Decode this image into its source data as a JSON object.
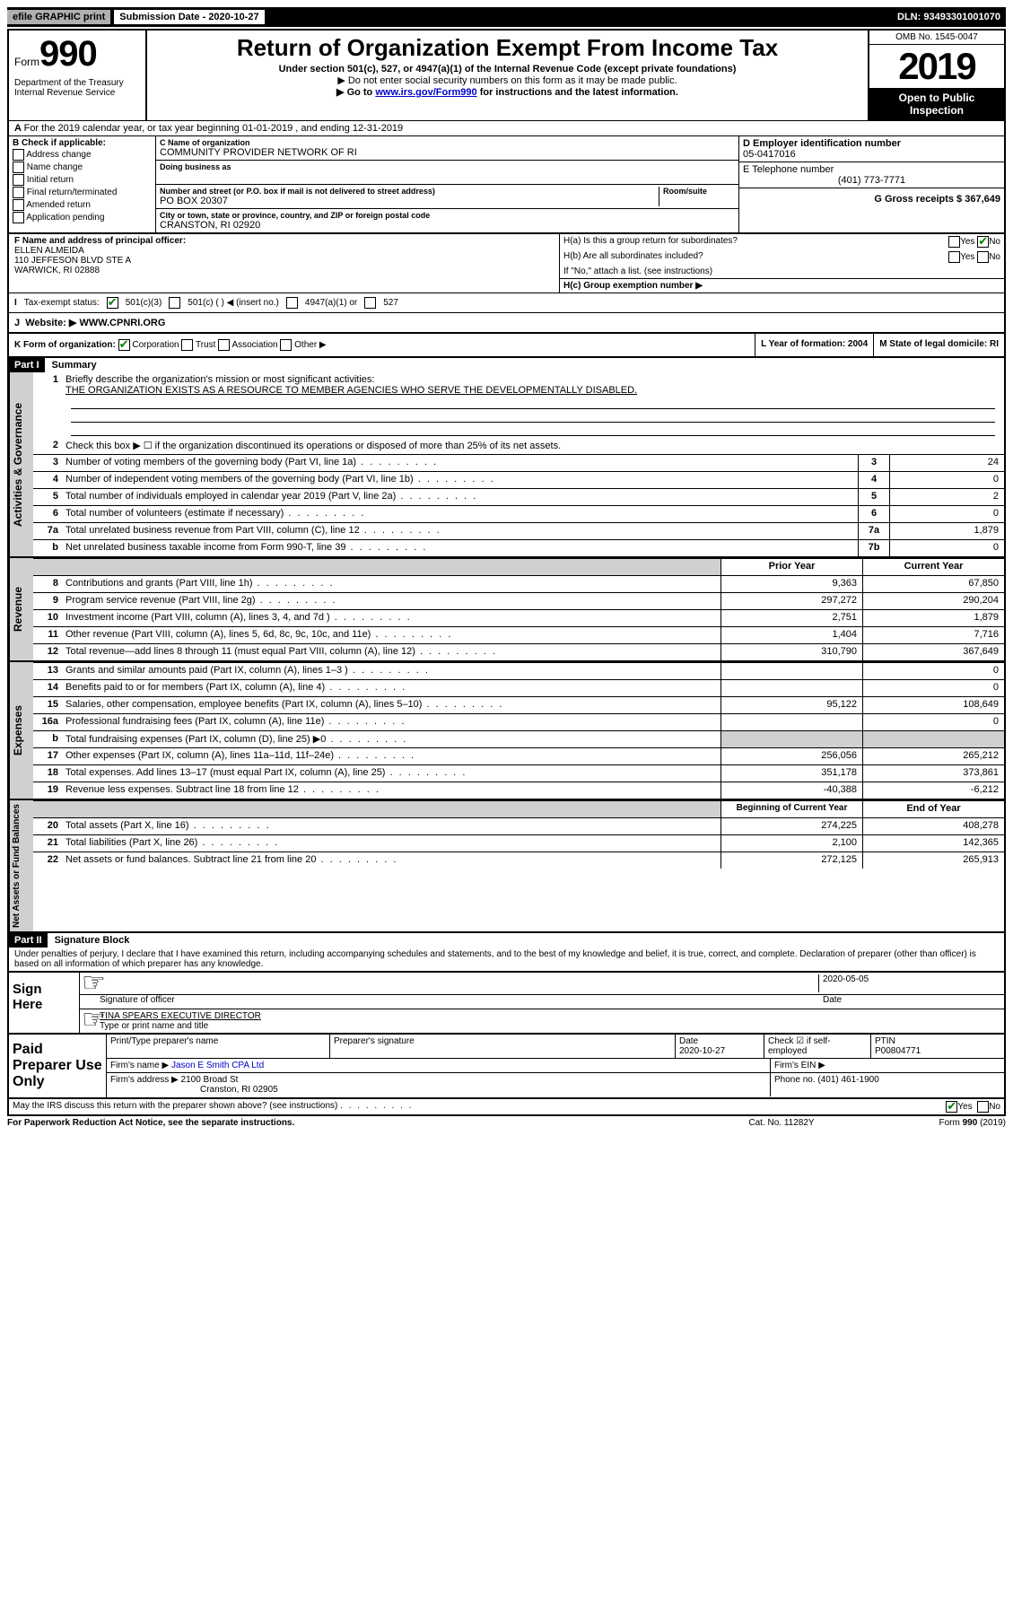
{
  "header": {
    "efile": "efile GRAPHIC print",
    "submission_label": "Submission Date - 2020-10-27",
    "dln": "DLN: 93493301001070"
  },
  "top": {
    "form_label": "Form",
    "form_number": "990",
    "dept": "Department of the Treasury\nInternal Revenue Service",
    "title": "Return of Organization Exempt From Income Tax",
    "under": "Under section 501(c), 527, or 4947(a)(1) of the Internal Revenue Code (except private foundations)",
    "note1": "▶ Do not enter social security numbers on this form as it may be made public.",
    "note2_prefix": "▶ Go to ",
    "note2_link": "www.irs.gov/Form990",
    "note2_suffix": " for instructions and the latest information.",
    "omb": "OMB No. 1545-0047",
    "year": "2019",
    "open": "Open to Public Inspection"
  },
  "line_a": "For the 2019 calendar year, or tax year beginning 01-01-2019   , and ending 12-31-2019",
  "box_b": {
    "title": "B Check if applicable:",
    "opts": [
      "Address change",
      "Name change",
      "Initial return",
      "Final return/terminated",
      "Amended return",
      "Application pending"
    ]
  },
  "box_c": {
    "name_label": "C Name of organization",
    "name": "COMMUNITY PROVIDER NETWORK OF RI",
    "dba_label": "Doing business as",
    "addr_label": "Number and street (or P.O. box if mail is not delivered to street address)",
    "room_label": "Room/suite",
    "addr": "PO BOX 20307",
    "city_label": "City or town, state or province, country, and ZIP or foreign postal code",
    "city": "CRANSTON, RI  02920"
  },
  "box_d": {
    "label": "D Employer identification number",
    "value": "05-0417016",
    "e_label": "E Telephone number",
    "e_value": "(401) 773-7771",
    "g_label": "G Gross receipts $ 367,649"
  },
  "box_f": {
    "label": "F  Name and address of principal officer:",
    "name": "ELLEN ALMEIDA",
    "addr1": "110 JEFFESON BLVD STE A",
    "addr2": "WARWICK, RI  02888"
  },
  "box_h": {
    "ha_q": "H(a)  Is this a group return for subordinates?",
    "hb_q": "H(b)  Are all subordinates included?",
    "hb_note": "If \"No,\" attach a list. (see instructions)",
    "hc_q": "H(c)  Group exemption number ▶"
  },
  "tax_status": {
    "label": "Tax-exempt status:",
    "o1": "501(c)(3)",
    "o2": "501(c) (   ) ◀ (insert no.)",
    "o3": "4947(a)(1) or",
    "o4": "527"
  },
  "website": {
    "label": "Website: ▶",
    "value": "WWW.CPNRI.ORG"
  },
  "k_row": {
    "k": "K Form of organization:",
    "k_opts": [
      "Corporation",
      "Trust",
      "Association",
      "Other ▶"
    ],
    "l": "L Year of formation: 2004",
    "m": "M State of legal domicile: RI"
  },
  "part1": {
    "header": "Part I",
    "title": "Summary",
    "q1": "Briefly describe the organization's mission or most significant activities:",
    "mission": "THE ORGANIZATION EXISTS AS A RESOURCE TO MEMBER AGENCIES WHO SERVE THE DEVELOPMENTALLY DISABLED.",
    "q2": "Check this box ▶ ☐  if the organization discontinued its operations or disposed of more than 25% of its net assets.",
    "lines_single": [
      {
        "n": "3",
        "d": "Number of voting members of the governing body (Part VI, line 1a)",
        "box": "3",
        "v": "24"
      },
      {
        "n": "4",
        "d": "Number of independent voting members of the governing body (Part VI, line 1b)",
        "box": "4",
        "v": "0"
      },
      {
        "n": "5",
        "d": "Total number of individuals employed in calendar year 2019 (Part V, line 2a)",
        "box": "5",
        "v": "2"
      },
      {
        "n": "6",
        "d": "Total number of volunteers (estimate if necessary)",
        "box": "6",
        "v": "0"
      },
      {
        "n": "7a",
        "d": "Total unrelated business revenue from Part VIII, column (C), line 12",
        "box": "7a",
        "v": "1,879"
      },
      {
        "n": "b",
        "d": "Net unrelated business taxable income from Form 990-T, line 39",
        "box": "7b",
        "v": "0"
      }
    ],
    "revenue_hdr_a": "Prior Year",
    "revenue_hdr_b": "Current Year",
    "revenue": [
      {
        "n": "8",
        "d": "Contributions and grants (Part VIII, line 1h)",
        "a": "9,363",
        "b": "67,850"
      },
      {
        "n": "9",
        "d": "Program service revenue (Part VIII, line 2g)",
        "a": "297,272",
        "b": "290,204"
      },
      {
        "n": "10",
        "d": "Investment income (Part VIII, column (A), lines 3, 4, and 7d )",
        "a": "2,751",
        "b": "1,879"
      },
      {
        "n": "11",
        "d": "Other revenue (Part VIII, column (A), lines 5, 6d, 8c, 9c, 10c, and 11e)",
        "a": "1,404",
        "b": "7,716"
      },
      {
        "n": "12",
        "d": "Total revenue—add lines 8 through 11 (must equal Part VIII, column (A), line 12)",
        "a": "310,790",
        "b": "367,649"
      }
    ],
    "expenses": [
      {
        "n": "13",
        "d": "Grants and similar amounts paid (Part IX, column (A), lines 1–3 )",
        "a": "",
        "b": "0"
      },
      {
        "n": "14",
        "d": "Benefits paid to or for members (Part IX, column (A), line 4)",
        "a": "",
        "b": "0"
      },
      {
        "n": "15",
        "d": "Salaries, other compensation, employee benefits (Part IX, column (A), lines 5–10)",
        "a": "95,122",
        "b": "108,649"
      },
      {
        "n": "16a",
        "d": "Professional fundraising fees (Part IX, column (A), line 11e)",
        "a": "",
        "b": "0"
      },
      {
        "n": "b",
        "d": "Total fundraising expenses (Part IX, column (D), line 25) ▶0",
        "a": "shaded",
        "b": "shaded"
      },
      {
        "n": "17",
        "d": "Other expenses (Part IX, column (A), lines 11a–11d, 11f–24e)",
        "a": "256,056",
        "b": "265,212"
      },
      {
        "n": "18",
        "d": "Total expenses. Add lines 13–17 (must equal Part IX, column (A), line 25)",
        "a": "351,178",
        "b": "373,861"
      },
      {
        "n": "19",
        "d": "Revenue less expenses. Subtract line 18 from line 12",
        "a": "-40,388",
        "b": "-6,212"
      }
    ],
    "net_hdr_a": "Beginning of Current Year",
    "net_hdr_b": "End of Year",
    "net": [
      {
        "n": "20",
        "d": "Total assets (Part X, line 16)",
        "a": "274,225",
        "b": "408,278"
      },
      {
        "n": "21",
        "d": "Total liabilities (Part X, line 26)",
        "a": "2,100",
        "b": "142,365"
      },
      {
        "n": "22",
        "d": "Net assets or fund balances. Subtract line 21 from line 20",
        "a": "272,125",
        "b": "265,913"
      }
    ]
  },
  "side_labels": {
    "gov": "Activities & Governance",
    "rev": "Revenue",
    "exp": "Expenses",
    "net": "Net Assets or Fund Balances"
  },
  "part2": {
    "header": "Part II",
    "title": "Signature Block",
    "declaration": "Under penalties of perjury, I declare that I have examined this return, including accompanying schedules and statements, and to the best of my knowledge and belief, it is true, correct, and complete. Declaration of preparer (other than officer) is based on all information of which preparer has any knowledge."
  },
  "sign": {
    "label": "Sign Here",
    "date": "2020-05-05",
    "sig_label": "Signature of officer",
    "date_label": "Date",
    "name": "TINA SPEARS EXECUTIVE DIRECTOR",
    "name_label": "Type or print name and title"
  },
  "paid": {
    "label": "Paid Preparer Use Only",
    "h1": "Print/Type preparer's name",
    "h2": "Preparer's signature",
    "h3": "Date",
    "h3v": "2020-10-27",
    "h4": "Check ☑ if self-employed",
    "h5": "PTIN",
    "h5v": "P00804771",
    "firm_label": "Firm's name    ▶",
    "firm": "Jason E Smith CPA Ltd",
    "ein_label": "Firm's EIN ▶",
    "addr_label": "Firm's address ▶",
    "addr": "2100 Broad St",
    "addr2": "Cranston, RI  02905",
    "phone_label": "Phone no. (401) 461-1900"
  },
  "footer": {
    "discuss": "May the IRS discuss this return with the preparer shown above? (see instructions)",
    "pra": "For Paperwork Reduction Act Notice, see the separate instructions.",
    "cat": "Cat. No. 11282Y",
    "form": "Form 990 (2019)"
  }
}
